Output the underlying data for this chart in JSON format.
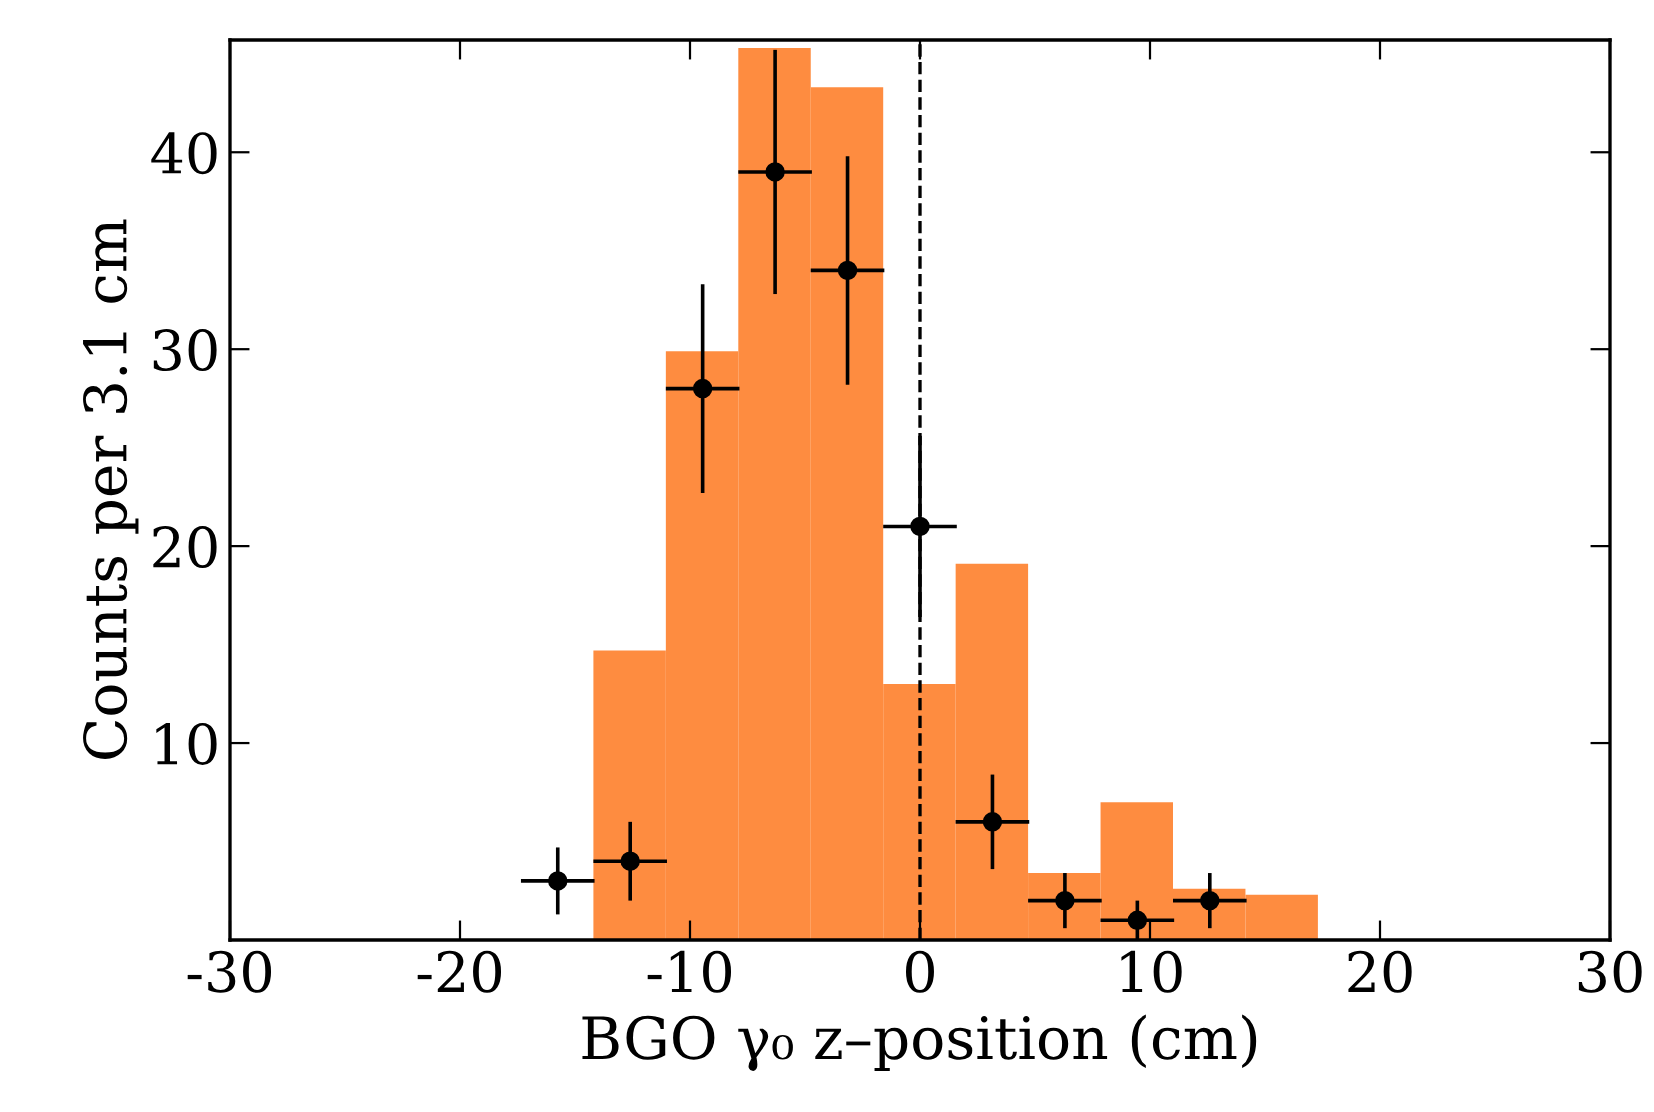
{
  "chart_data": {
    "type": "histogram",
    "xlabel": "BGO γ₀ z–position (cm)",
    "ylabel": "Counts per 3.1 cm",
    "xlim": [
      -30,
      30
    ],
    "xticks": [
      -30,
      -20,
      -10,
      0,
      10,
      20,
      30
    ],
    "ylim": [
      0,
      45.7
    ],
    "yticks": [
      10,
      20,
      30,
      40
    ],
    "grid": false,
    "ref_lines": [
      {
        "axis": "x",
        "value": 0,
        "color": "#000000",
        "line_style": "dashed"
      }
    ],
    "series": [
      {
        "color": "#fe8c40",
        "bins": [
          -14.2,
          -11.05,
          -7.9,
          -4.75,
          -1.6,
          1.55,
          4.7,
          7.85,
          11.0,
          14.15,
          17.3
        ],
        "values": [
          14.7,
          29.9,
          45.3,
          43.3,
          13.0,
          19.1,
          3.4,
          7.0,
          2.6,
          2.3
        ]
      },
      {
        "type": "scatter",
        "color": "#000000",
        "marker": "circle",
        "x": [
          -15.75,
          -12.6,
          -9.45,
          -6.3,
          -3.15,
          0,
          3.15,
          6.3,
          9.45,
          12.6
        ],
        "values": [
          3,
          4,
          28,
          39,
          34,
          21,
          6,
          2,
          1,
          2
        ],
        "errors": [
          1.7,
          2.0,
          5.3,
          6.2,
          5.8,
          4.6,
          2.4,
          1.4,
          1.0,
          1.4
        ],
        "xerrors": [
          1.6,
          1.6,
          1.6,
          1.6,
          1.6,
          1.6,
          1.6,
          1.6,
          1.6,
          1.6
        ]
      }
    ]
  }
}
